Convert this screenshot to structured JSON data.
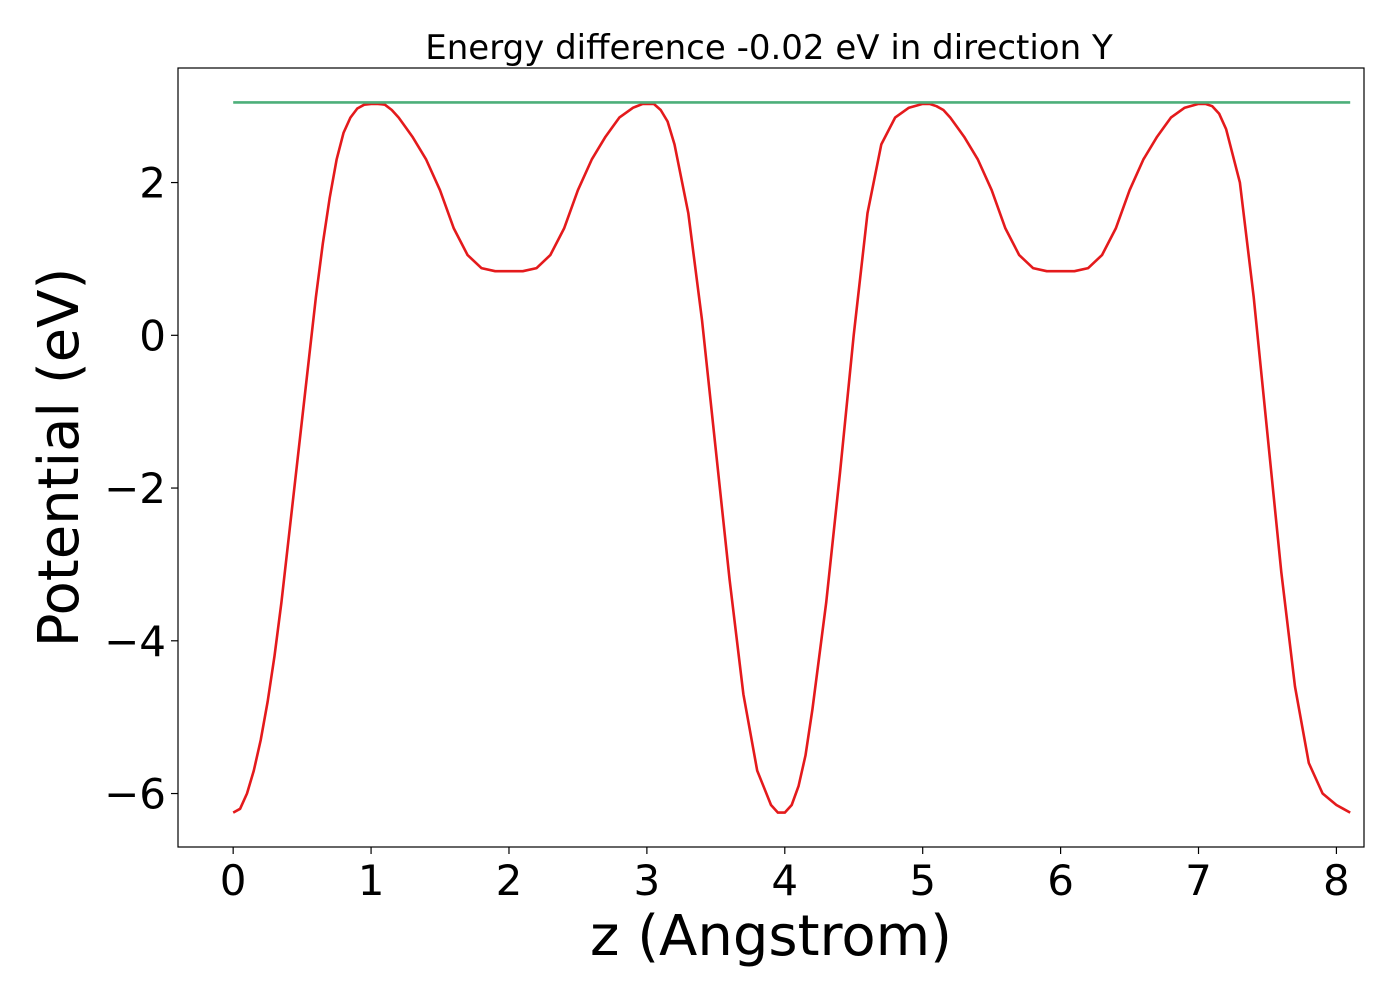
{
  "chart_data": {
    "type": "line",
    "title": "Energy difference -0.02 eV in direction Y",
    "xlabel": "z (Angstrom)",
    "ylabel": "Potential (eV)",
    "xlim": [
      -0.4,
      8.2
    ],
    "ylim": [
      -6.7,
      3.5
    ],
    "xticks": [
      0,
      1,
      2,
      3,
      4,
      5,
      6,
      7,
      8
    ],
    "yticks": [
      -6,
      -4,
      -2,
      0,
      2
    ],
    "ytick_labels": [
      "−6",
      "−4",
      "−2",
      "0",
      "2"
    ],
    "grid": false,
    "series": [
      {
        "color": "#e41a1c",
        "x": [
          0.0,
          0.05,
          0.1,
          0.15,
          0.2,
          0.25,
          0.3,
          0.35,
          0.4,
          0.45,
          0.5,
          0.55,
          0.6,
          0.65,
          0.7,
          0.75,
          0.8,
          0.85,
          0.9,
          0.95,
          1.0,
          1.05,
          1.1,
          1.15,
          1.2,
          1.3,
          1.4,
          1.5,
          1.6,
          1.7,
          1.8,
          1.9,
          2.0,
          2.1,
          2.2,
          2.3,
          2.4,
          2.5,
          2.6,
          2.7,
          2.8,
          2.9,
          2.97,
          3.05,
          3.1,
          3.15,
          3.2,
          3.3,
          3.4,
          3.5,
          3.6,
          3.7,
          3.8,
          3.9,
          3.95,
          4.0,
          4.05,
          4.1,
          4.15,
          4.2,
          4.3,
          4.4,
          4.5,
          4.6,
          4.7,
          4.8,
          4.9,
          5.0,
          5.05,
          5.1,
          5.15,
          5.2,
          5.3,
          5.4,
          5.5,
          5.6,
          5.7,
          5.8,
          5.9,
          6.0,
          6.1,
          6.2,
          6.3,
          6.4,
          6.5,
          6.6,
          6.7,
          6.8,
          6.9,
          7.0,
          7.05,
          7.1,
          7.15,
          7.2,
          7.3,
          7.4,
          7.5,
          7.6,
          7.7,
          7.8,
          7.9,
          8.0,
          8.05,
          8.1
        ],
        "y": [
          -6.25,
          -6.2,
          -6.0,
          -5.7,
          -5.3,
          -4.8,
          -4.2,
          -3.5,
          -2.7,
          -1.9,
          -1.1,
          -0.3,
          0.5,
          1.2,
          1.8,
          2.3,
          2.65,
          2.85,
          2.97,
          3.02,
          3.03,
          3.03,
          3.02,
          2.95,
          2.85,
          2.6,
          2.3,
          1.9,
          1.4,
          1.05,
          0.88,
          0.84,
          0.84,
          0.84,
          0.88,
          1.05,
          1.4,
          1.9,
          2.3,
          2.6,
          2.85,
          2.98,
          3.03,
          3.03,
          2.95,
          2.8,
          2.5,
          1.6,
          0.2,
          -1.5,
          -3.2,
          -4.7,
          -5.7,
          -6.15,
          -6.25,
          -6.25,
          -6.15,
          -5.9,
          -5.5,
          -4.9,
          -3.5,
          -1.8,
          0.0,
          1.6,
          2.5,
          2.85,
          2.98,
          3.03,
          3.03,
          3.0,
          2.95,
          2.85,
          2.6,
          2.3,
          1.9,
          1.4,
          1.05,
          0.88,
          0.84,
          0.84,
          0.84,
          0.88,
          1.05,
          1.4,
          1.9,
          2.3,
          2.6,
          2.85,
          2.98,
          3.03,
          3.03,
          3.0,
          2.9,
          2.7,
          2.0,
          0.5,
          -1.3,
          -3.1,
          -4.6,
          -5.6,
          -6.0,
          -6.15,
          -6.2,
          -6.25
        ]
      },
      {
        "color": "#4daf7a",
        "x": [
          0.0,
          8.1
        ],
        "y": [
          3.05,
          3.05
        ]
      }
    ]
  }
}
